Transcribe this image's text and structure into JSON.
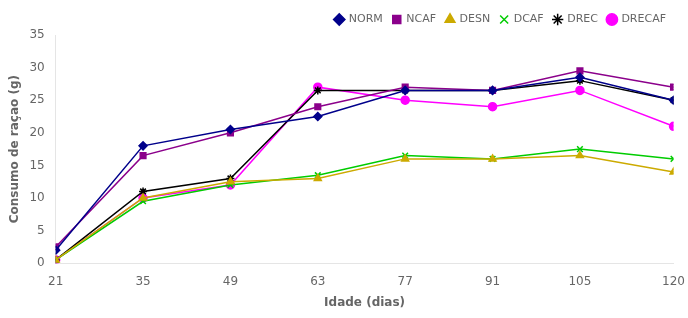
{
  "chart_data": {
    "type": "line",
    "x": [
      21,
      35,
      49,
      63,
      77,
      91,
      105,
      120
    ],
    "series": [
      {
        "name": "NORM",
        "color": "#00008B",
        "marker": "diamond",
        "values": [
          2.0,
          18.0,
          20.5,
          22.5,
          26.5,
          26.5,
          28.5,
          25.0
        ]
      },
      {
        "name": "NCAF",
        "color": "#8B008B",
        "marker": "square",
        "values": [
          2.5,
          16.5,
          20.0,
          24.0,
          27.0,
          26.5,
          29.5,
          27.0
        ]
      },
      {
        "name": "DESN",
        "color": "#ccaa00",
        "marker": "triangle",
        "values": [
          0.5,
          10.0,
          12.5,
          13.0,
          16.0,
          16.0,
          16.5,
          14.0
        ]
      },
      {
        "name": "DCAF",
        "color": "#00cc00",
        "marker": "x",
        "values": [
          0.5,
          9.5,
          12.0,
          13.5,
          16.5,
          16.0,
          17.5,
          16.0
        ]
      },
      {
        "name": "DREC",
        "color": "#000000",
        "marker": "star",
        "values": [
          0.5,
          11.0,
          13.0,
          26.5,
          26.5,
          26.5,
          28.0,
          25.0
        ]
      },
      {
        "name": "DRECAF",
        "color": "#ff00ff",
        "marker": "circle",
        "values": [
          0.5,
          10.0,
          12.0,
          27.0,
          25.0,
          24.0,
          26.5,
          21.0
        ]
      }
    ],
    "xlabel": "Idade (dias)",
    "ylabel": "Consumo de raçao (g)",
    "xlim": [
      21,
      120
    ],
    "xticks": [
      21,
      35,
      49,
      63,
      77,
      91,
      105,
      120
    ],
    "ylim": [
      0,
      35
    ],
    "yticks": [
      0,
      5,
      10,
      15,
      20,
      25,
      30,
      35
    ],
    "grid": false,
    "legend": "upper right"
  }
}
